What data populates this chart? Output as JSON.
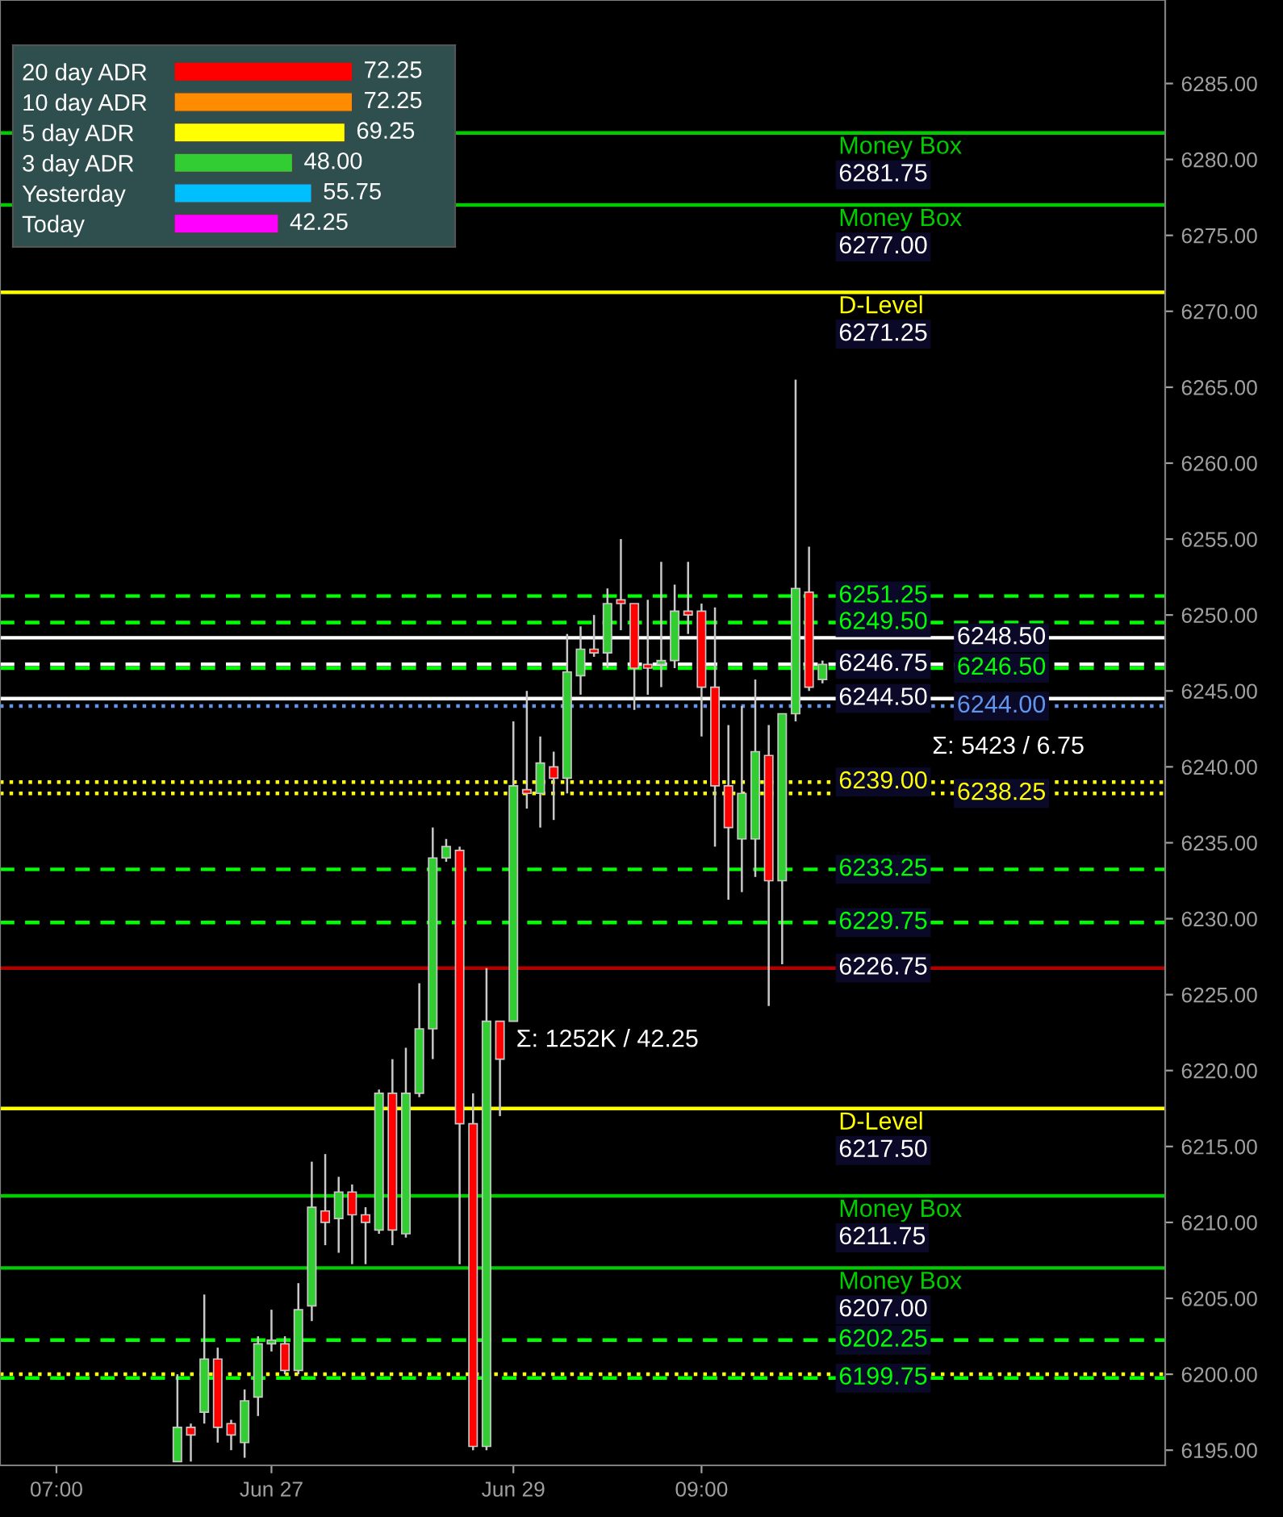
{
  "chart_data": [
    {
      "type": "candlestick",
      "categories": [
        "07:00",
        null,
        null,
        null,
        null,
        null,
        null,
        null,
        null,
        null,
        null,
        null,
        null,
        null,
        null,
        null,
        "Jun 27",
        null,
        null,
        null,
        null,
        null,
        null,
        null,
        null,
        null,
        null,
        null,
        null,
        null,
        null,
        null,
        null,
        null,
        "Jun 29",
        null,
        null,
        null,
        null,
        null,
        null,
        null,
        null,
        null,
        null,
        null,
        null,
        null,
        "09:00",
        null,
        null,
        null,
        null,
        null,
        null,
        null,
        null,
        null,
        null,
        null,
        null,
        null,
        null,
        null,
        null,
        null,
        null,
        null,
        null,
        null,
        null,
        null,
        null,
        null,
        null,
        null,
        null,
        null,
        null,
        null,
        null,
        null,
        null
      ],
      "ohlc": [
        null,
        null,
        null,
        null,
        null,
        null,
        null,
        null,
        null,
        [
          6194.25,
          6200,
          6194.25,
          6196.5
        ],
        [
          6196.5,
          6196.75,
          6194.25,
          6196
        ],
        [
          6197.5,
          6205.25,
          6196.75,
          6201
        ],
        [
          6201,
          6201.75,
          6195.5,
          6196.5
        ],
        [
          6196.75,
          6197,
          6195,
          6196
        ],
        [
          6195.5,
          6199,
          6194.5,
          6198.25
        ],
        [
          6198.5,
          6202.5,
          6197.25,
          6202
        ],
        [
          6202,
          6204.25,
          6201.5,
          6202.25
        ],
        [
          6202,
          6202.5,
          6200,
          6200.25
        ],
        [
          6200.25,
          6206,
          6200,
          6204.25
        ],
        [
          6204.5,
          6214,
          6203.5,
          6211
        ],
        [
          6210.75,
          6214.5,
          6208.5,
          6210
        ],
        [
          6210.25,
          6213,
          6208,
          6212
        ],
        [
          6212,
          6212.5,
          6207.25,
          6210.5
        ],
        [
          6210.5,
          6211,
          6207.25,
          6210
        ],
        [
          6209.5,
          6218.75,
          6209.25,
          6218.5
        ],
        [
          6218.5,
          6220.75,
          6208.5,
          6209.5
        ],
        [
          6209.25,
          6221.5,
          6209,
          6218.5
        ],
        [
          6218.5,
          6225.75,
          6218.25,
          6222.75
        ],
        [
          6222.75,
          6236,
          6220.75,
          6234
        ],
        [
          6234,
          6235.25,
          6233.75,
          6234.75
        ],
        [
          6234.5,
          6234.75,
          6207.25,
          6216.5
        ],
        [
          6216.5,
          6218.5,
          6195,
          6195.25
        ],
        [
          6195.25,
          6226.75,
          6195,
          6223.25
        ],
        [
          6223.25,
          6223.25,
          6217,
          6220.75
        ],
        [
          6223.25,
          6243,
          6223.25,
          6238.75
        ],
        [
          6238.5,
          6245,
          6237.25,
          6238.25
        ],
        [
          6238.25,
          6242,
          6236,
          6240.25
        ],
        [
          6240,
          6241,
          6236.5,
          6239.25
        ],
        [
          6239.25,
          6248.75,
          6238.25,
          6246.25
        ],
        [
          6246,
          6249.25,
          6244.75,
          6247.75
        ],
        [
          6247.75,
          6250,
          6247.25,
          6247.5
        ],
        [
          6247.5,
          6251.75,
          6246.5,
          6250.75
        ],
        [
          6251,
          6255,
          6249,
          6250.75
        ],
        [
          6250.75,
          6250.75,
          6243.75,
          6246.5
        ],
        [
          6246.75,
          6251,
          6244.75,
          6246.5
        ],
        [
          6246.75,
          6253.5,
          6245.25,
          6247
        ],
        [
          6247,
          6252,
          6246.5,
          6250.25
        ],
        [
          6250.25,
          6253.5,
          6248.75,
          6250
        ],
        [
          6250.25,
          6250.75,
          6242,
          6245.25
        ],
        [
          6245.25,
          6250.5,
          6234.75,
          6238.75
        ],
        [
          6238.75,
          6242.75,
          6231.25,
          6236
        ],
        [
          6235.25,
          6244,
          6231.75,
          6238.25
        ],
        [
          6235.25,
          6245.75,
          6232.75,
          6241
        ],
        [
          6240.75,
          6242.75,
          6224.25,
          6232.5
        ],
        [
          6232.5,
          6243.5,
          6227,
          6243.5
        ],
        [
          6243.5,
          6265.5,
          6243,
          6251.75
        ],
        [
          6251.5,
          6254.5,
          6245,
          6245.25
        ],
        [
          6245.75,
          6247,
          6245.5,
          6246.75
        ],
        null,
        null,
        null,
        null,
        null,
        null,
        null,
        null,
        null,
        null,
        null,
        null,
        null,
        null,
        null,
        null,
        null,
        null,
        null,
        null,
        null,
        null,
        null,
        null,
        null
      ],
      "ylim": [
        6194,
        6290.5
      ],
      "yticks": [
        {
          "value": 6195,
          "label": "6195.00"
        },
        {
          "value": 6200,
          "label": "6200.00"
        },
        {
          "value": 6205,
          "label": "6205.00"
        },
        {
          "value": 6210,
          "label": "6210.00"
        },
        {
          "value": 6215,
          "label": "6215.00"
        },
        {
          "value": 6220,
          "label": "6220.00"
        },
        {
          "value": 6225,
          "label": "6225.00"
        },
        {
          "value": 6230,
          "label": "6230.00"
        },
        {
          "value": 6235,
          "label": "6235.00"
        },
        {
          "value": 6240,
          "label": "6240.00"
        },
        {
          "value": 6245,
          "label": "6245.00"
        },
        {
          "value": 6250,
          "label": "6250.00"
        },
        {
          "value": 6255,
          "label": "6255.00"
        },
        {
          "value": 6260,
          "label": "6260.00"
        },
        {
          "value": 6265,
          "label": "6265.00"
        },
        {
          "value": 6270,
          "label": "6270.00"
        },
        {
          "value": 6275,
          "label": "6275.00"
        },
        {
          "value": 6280,
          "label": "6280.00"
        },
        {
          "value": 6285,
          "label": "6285.00"
        }
      ],
      "ref_lines": [
        {
          "axis": "y",
          "value": 6281.75,
          "label": "Money Box\n6281.75",
          "color": "#00cc00",
          "line_style": "solid"
        },
        {
          "axis": "y",
          "value": 6277,
          "label": "Money Box\n6277.00",
          "color": "#00cc00",
          "line_style": "solid"
        },
        {
          "axis": "y",
          "value": 6271.25,
          "label": "D-Level\n6271.25",
          "color": "#ffff00",
          "line_style": "solid"
        },
        {
          "axis": "y",
          "value": 6251.25,
          "label": "6251.25",
          "color": "#00ff00",
          "line_style": "dashed"
        },
        {
          "axis": "y",
          "value": 6249.5,
          "label": "6249.50",
          "color": "#00ff00",
          "line_style": "dashed"
        },
        {
          "axis": "y",
          "value": 6248.5,
          "label": "6248.50",
          "color": "#ffffff",
          "line_style": "solid"
        },
        {
          "axis": "y",
          "value": 6246.75,
          "label": "6246.75",
          "color": "#ffffff",
          "line_style": "dashed"
        },
        {
          "axis": "y",
          "value": 6246.5,
          "label": "6246.50",
          "color": "#00ff00",
          "line_style": "dashed"
        },
        {
          "axis": "y",
          "value": 6244.5,
          "label": "6244.50",
          "color": "#ffffff",
          "line_style": "solid"
        },
        {
          "axis": "y",
          "value": 6244,
          "label": "6244.00",
          "color": "#6495ed",
          "line_style": "dotted"
        },
        {
          "axis": "y",
          "value": 6239,
          "label": "6239.00",
          "color": "#ffff00",
          "line_style": "dotted"
        },
        {
          "axis": "y",
          "value": 6238.25,
          "label": "6238.25",
          "color": "#ffff00",
          "line_style": "dotted"
        },
        {
          "axis": "y",
          "value": 6233.25,
          "label": "6233.25",
          "color": "#00ff00",
          "line_style": "dashed"
        },
        {
          "axis": "y",
          "value": 6229.75,
          "label": "6229.75",
          "color": "#00ff00",
          "line_style": "dashed"
        },
        {
          "axis": "y",
          "value": 6226.75,
          "label": "6226.75",
          "color": "#b00000",
          "line_style": "solid"
        },
        {
          "axis": "y",
          "value": 6217.5,
          "label": "D-Level\n6217.50",
          "color": "#ffff00",
          "line_style": "solid"
        },
        {
          "axis": "y",
          "value": 6211.75,
          "label": "Money Box\n6211.75",
          "color": "#00cc00",
          "line_style": "solid"
        },
        {
          "axis": "y",
          "value": 6207,
          "label": "Money Box\n6207.00",
          "color": "#00cc00",
          "line_style": "solid"
        },
        {
          "axis": "y",
          "value": 6202.25,
          "label": "6202.25",
          "color": "#00ff00",
          "line_style": "dashed"
        },
        {
          "axis": "y",
          "value": 6200,
          "label": null,
          "color": "#ffff00",
          "line_style": "dotted"
        },
        {
          "axis": "y",
          "value": 6199.75,
          "label": "6199.75",
          "color": "#00ff00",
          "line_style": "dashed"
        }
      ],
      "annotations": [
        "Σ: 1252K / 42.25",
        "Σ: 5423 / 6.75"
      ],
      "grid": false,
      "legend": false
    },
    {
      "type": "bar",
      "orientation": "horizontal",
      "categories": [
        "20 day ADR",
        "10 day ADR",
        "5 day ADR",
        "3 day ADR",
        "Yesterday",
        "Today"
      ],
      "values": [
        72.25,
        72.25,
        69.25,
        48.0,
        55.75,
        42.25
      ],
      "colors": [
        "#ff0000",
        "#ff8c00",
        "#ffff00",
        "#32cd32",
        "#00bfff",
        "#ff00ff"
      ],
      "value_labels": [
        "72.25",
        "72.25",
        "69.25",
        "48.00",
        "55.75",
        "42.25"
      ],
      "grid": false,
      "legend": false
    }
  ]
}
